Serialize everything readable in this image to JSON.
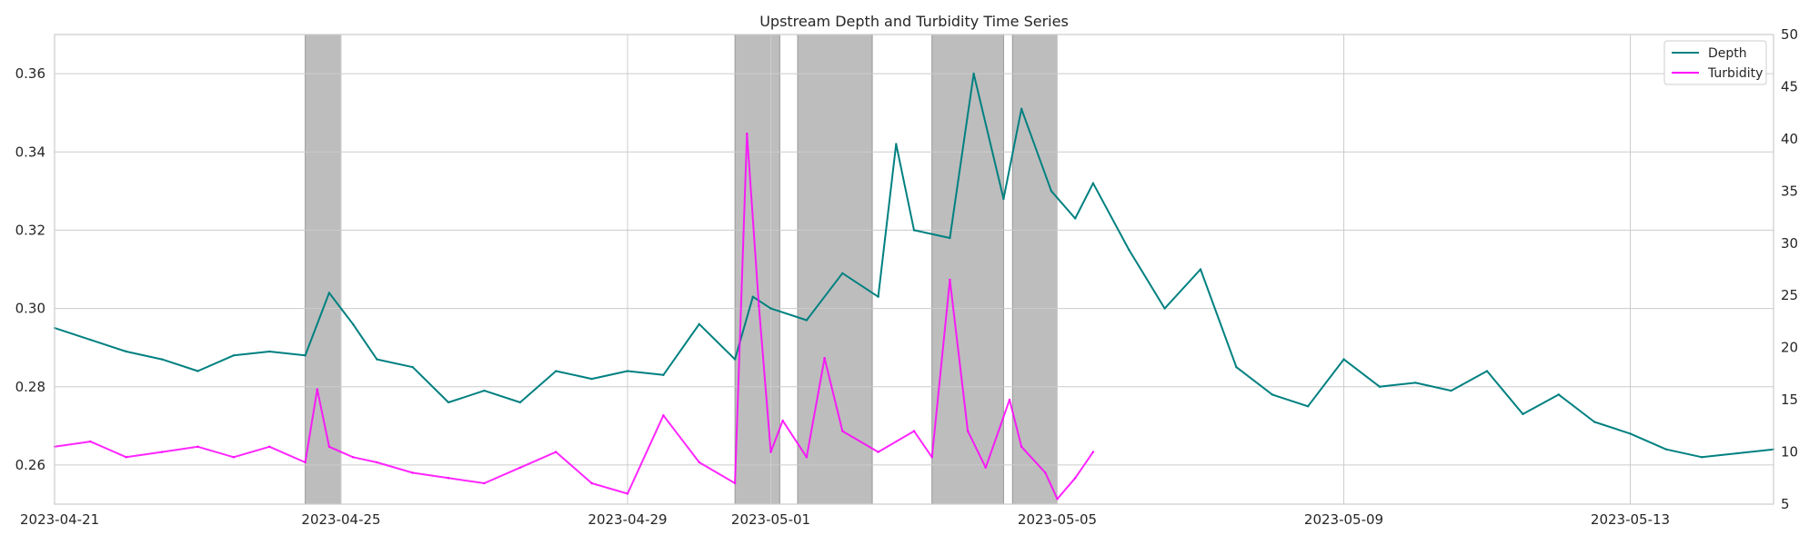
{
  "chart_data": {
    "type": "line",
    "title": "Upstream Depth and Turbidity Time Series",
    "xlabel": "",
    "ylabel": "",
    "y2label": "",
    "xlim": [
      "2023-04-21",
      "2023-05-15T00:00"
    ],
    "ylim": [
      0.25,
      0.37
    ],
    "y2lim": [
      5,
      50
    ],
    "x_ticks": [
      "2023-04-21",
      "2023-04-25",
      "2023-04-29",
      "2023-05-01",
      "2023-05-05",
      "2023-05-09",
      "2023-05-13"
    ],
    "y_ticks": [
      0.26,
      0.28,
      0.3,
      0.32,
      0.34,
      0.36
    ],
    "y2_ticks": [
      5,
      10,
      15,
      20,
      25,
      30,
      35,
      40,
      45,
      50
    ],
    "grid": true,
    "legend": "top-right",
    "colors": {
      "depth": "#008080",
      "turbidity": "#ff00ff",
      "turbidity_light": "#ee82ee",
      "shade": "#bdbdbd"
    },
    "shaded_regions": [
      [
        "2023-04-24T12:00",
        "2023-04-25T00:00"
      ],
      [
        "2023-04-30T12:00",
        "2023-05-01T03:00"
      ],
      [
        "2023-05-01T09:00",
        "2023-05-02T10:00"
      ],
      [
        "2023-05-03T06:00",
        "2023-05-04T06:00"
      ],
      [
        "2023-05-04T09:00",
        "2023-05-05T00:00"
      ]
    ],
    "series": [
      {
        "name": "Depth",
        "axis": "left",
        "x": [
          "2023-04-21T00:00",
          "2023-04-21T12:00",
          "2023-04-22T00:00",
          "2023-04-22T12:00",
          "2023-04-23T00:00",
          "2023-04-23T12:00",
          "2023-04-24T00:00",
          "2023-04-24T12:00",
          "2023-04-24T20:00",
          "2023-04-25T04:00",
          "2023-04-25T12:00",
          "2023-04-26T00:00",
          "2023-04-26T12:00",
          "2023-04-27T00:00",
          "2023-04-27T12:00",
          "2023-04-28T00:00",
          "2023-04-28T12:00",
          "2023-04-29T00:00",
          "2023-04-29T12:00",
          "2023-04-30T00:00",
          "2023-04-30T12:00",
          "2023-04-30T18:00",
          "2023-05-01T00:00",
          "2023-05-01T12:00",
          "2023-05-02T00:00",
          "2023-05-02T12:00",
          "2023-05-02T18:00",
          "2023-05-03T00:00",
          "2023-05-03T12:00",
          "2023-05-03T20:00",
          "2023-05-04T06:00",
          "2023-05-04T12:00",
          "2023-05-04T22:00",
          "2023-05-05T06:00",
          "2023-05-05T12:00",
          "2023-05-06T00:00",
          "2023-05-06T12:00",
          "2023-05-07T00:00",
          "2023-05-07T12:00",
          "2023-05-08T00:00",
          "2023-05-08T12:00",
          "2023-05-09T00:00",
          "2023-05-09T12:00",
          "2023-05-10T00:00",
          "2023-05-10T12:00",
          "2023-05-11T00:00",
          "2023-05-11T12:00",
          "2023-05-12T00:00",
          "2023-05-12T12:00",
          "2023-05-13T00:00",
          "2023-05-13T12:00",
          "2023-05-14T00:00",
          "2023-05-14T12:00",
          "2023-05-15T00:00"
        ],
        "values": [
          0.295,
          0.292,
          0.289,
          0.287,
          0.284,
          0.288,
          0.289,
          0.288,
          0.304,
          0.296,
          0.287,
          0.285,
          0.276,
          0.279,
          0.276,
          0.284,
          0.282,
          0.284,
          0.283,
          0.296,
          0.287,
          0.303,
          0.3,
          0.297,
          0.309,
          0.303,
          0.342,
          0.32,
          0.318,
          0.36,
          0.328,
          0.351,
          0.33,
          0.323,
          0.332,
          0.315,
          0.3,
          0.31,
          0.285,
          0.278,
          0.275,
          0.287,
          0.28,
          0.281,
          0.279,
          0.284,
          0.273,
          0.278,
          0.271,
          0.268,
          0.264,
          0.262,
          0.263,
          0.264
        ]
      },
      {
        "name": "Turbidity",
        "axis": "right",
        "x": [
          "2023-04-21T00:00",
          "2023-04-21T12:00",
          "2023-04-22T00:00",
          "2023-04-22T12:00",
          "2023-04-23T00:00",
          "2023-04-23T12:00",
          "2023-04-24T00:00",
          "2023-04-24T12:00",
          "2023-04-24T16:00",
          "2023-04-24T20:00",
          "2023-04-25T04:00",
          "2023-04-25T12:00",
          "2023-04-26T00:00",
          "2023-04-26T12:00",
          "2023-04-27T00:00",
          "2023-04-27T12:00",
          "2023-04-28T00:00",
          "2023-04-28T12:00",
          "2023-04-29T00:00",
          "2023-04-29T12:00",
          "2023-04-30T00:00",
          "2023-04-30T12:00",
          "2023-04-30T16:00",
          "2023-04-30T20:00",
          "2023-05-01T00:00",
          "2023-05-01T04:00",
          "2023-05-01T12:00",
          "2023-05-01T18:00",
          "2023-05-02T00:00",
          "2023-05-02T12:00",
          "2023-05-03T00:00",
          "2023-05-03T06:00",
          "2023-05-03T12:00",
          "2023-05-03T18:00",
          "2023-05-04T00:00",
          "2023-05-04T08:00",
          "2023-05-04T12:00",
          "2023-05-04T20:00",
          "2023-05-05T00:00",
          "2023-05-05T06:00",
          "2023-05-05T12:00"
        ],
        "values": [
          10.5,
          11.0,
          9.5,
          10.0,
          10.5,
          9.5,
          10.5,
          9.0,
          16.0,
          10.5,
          9.5,
          9.0,
          8.0,
          7.5,
          7.0,
          8.5,
          10.0,
          7.0,
          6.0,
          13.5,
          9.0,
          7.0,
          40.5,
          24.0,
          10.0,
          13.0,
          9.5,
          19.0,
          12.0,
          10.0,
          12.0,
          9.5,
          26.5,
          12.0,
          8.5,
          15.0,
          10.5,
          8.0,
          5.5,
          7.5,
          10.0
        ]
      }
    ]
  }
}
